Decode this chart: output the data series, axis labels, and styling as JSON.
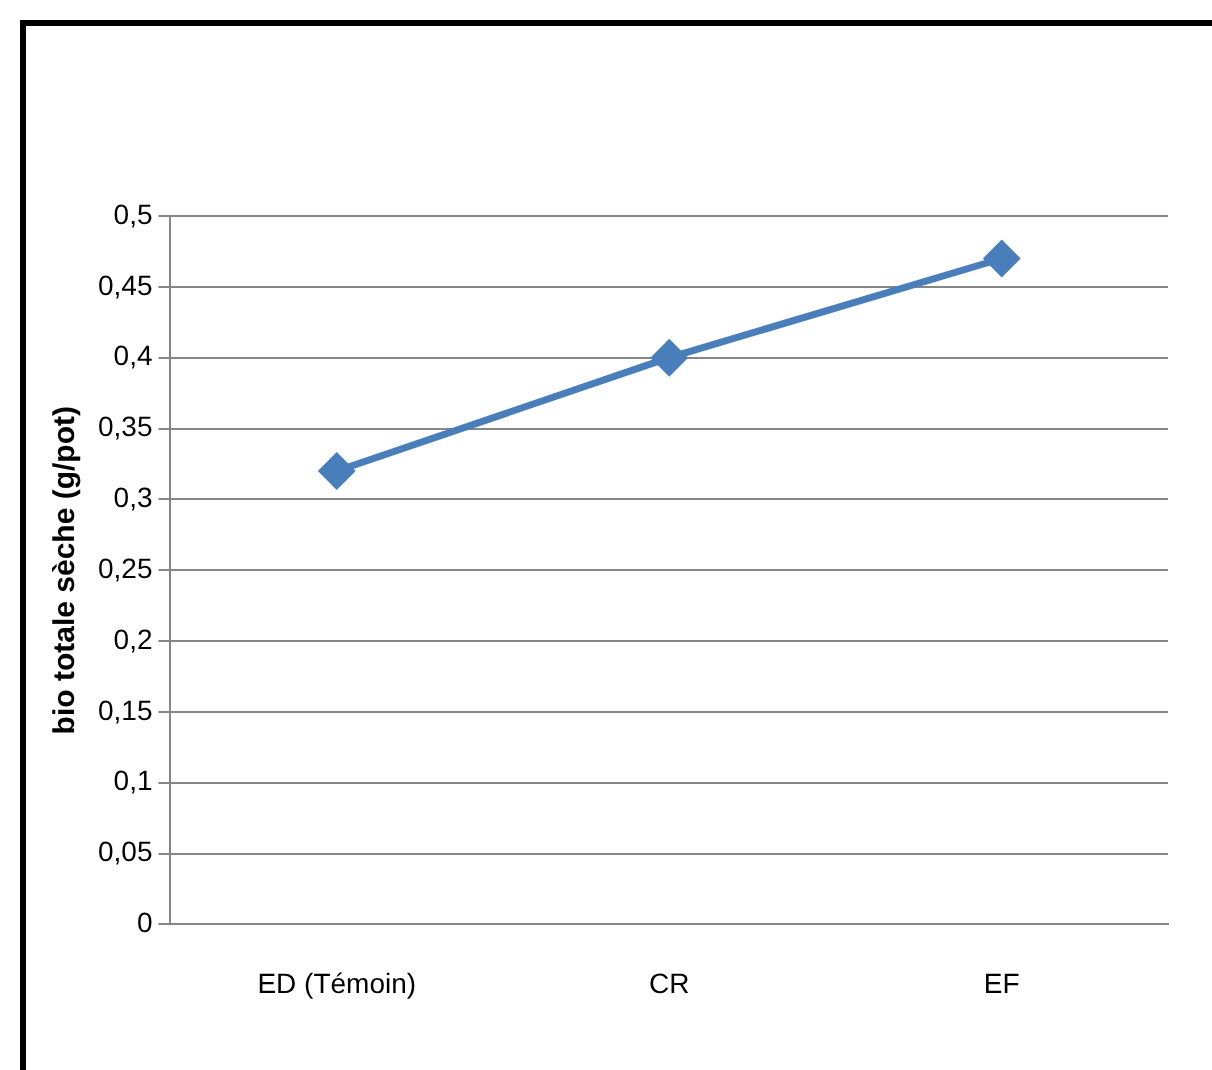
{
  "chart_data": {
    "type": "line",
    "ylabel": "bio totale sèche (g/pot)",
    "categories": [
      "ED (Témoin)",
      "CR",
      "EF"
    ],
    "series": [
      {
        "color": "#4a7ebb",
        "values": [
          0.32,
          0.4,
          0.47
        ]
      }
    ],
    "ylim": [
      0,
      0.5
    ],
    "yticks": [
      {
        "value": 0,
        "label": "0"
      },
      {
        "value": 0.05,
        "label": "0,05"
      },
      {
        "value": 0.1,
        "label": "0,1"
      },
      {
        "value": 0.15,
        "label": "0,15"
      },
      {
        "value": 0.2,
        "label": "0,2"
      },
      {
        "value": 0.25,
        "label": "0,25"
      },
      {
        "value": 0.3,
        "label": "0,3"
      },
      {
        "value": 0.35,
        "label": "0,35"
      },
      {
        "value": 0.4,
        "label": "0,4"
      },
      {
        "value": 0.45,
        "label": "0,45"
      },
      {
        "value": 0.5,
        "label": "0,5"
      }
    ],
    "grid": "y",
    "legend": false,
    "marker": "diamond",
    "line_style": "solid"
  }
}
